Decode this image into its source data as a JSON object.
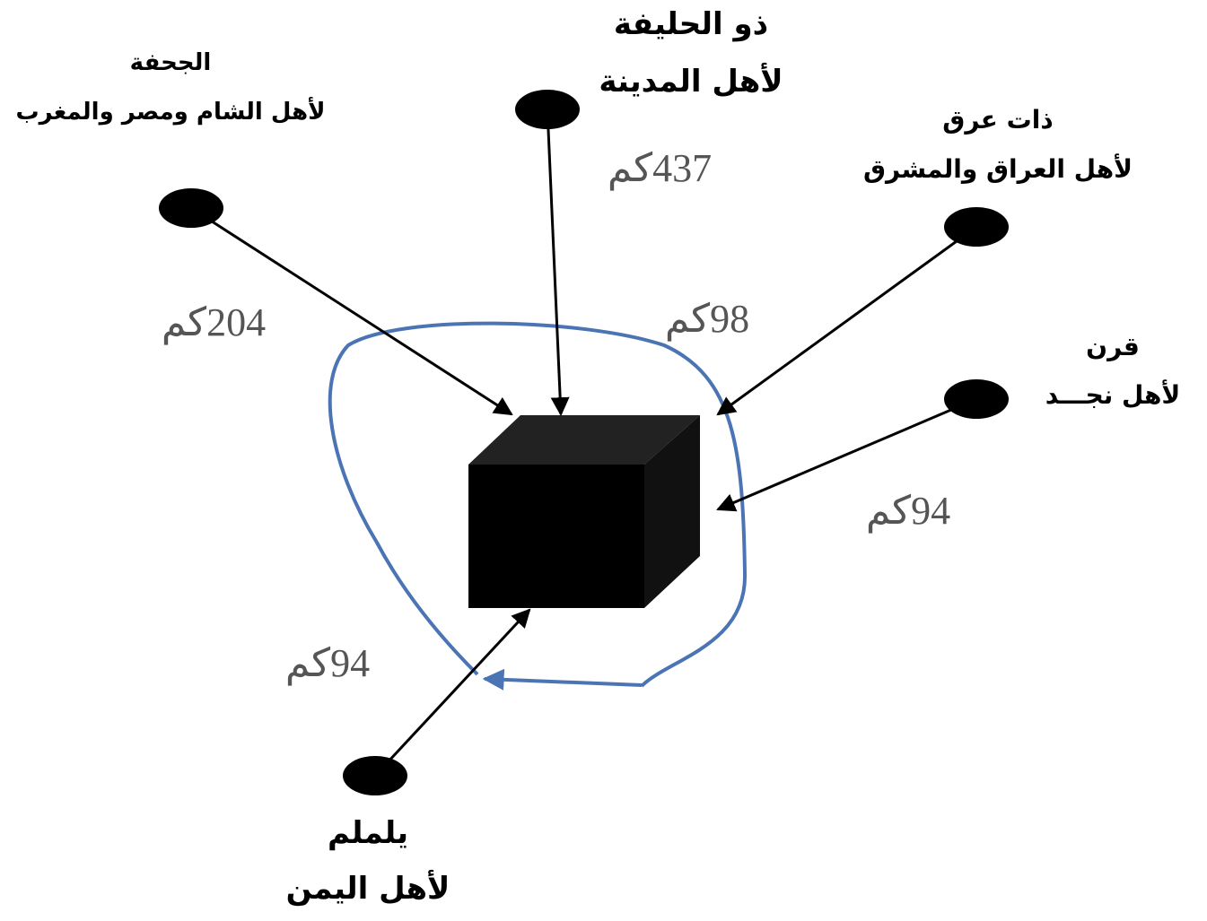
{
  "nodes": [
    {
      "name": "ذو الحليفة",
      "for_people": "لأهل المدينة",
      "distance": "437كم"
    },
    {
      "name": "الجحفة",
      "for_people": "لأهل الشام ومصر والمغرب",
      "distance": "204كم"
    },
    {
      "name": "ذات عرق",
      "for_people": "لأهل العراق والمشرق",
      "distance": "98كم"
    },
    {
      "name": "قرن",
      "for_people": "لأهل نجـــد",
      "distance": "94كم"
    },
    {
      "name": "يلملم",
      "for_people": "لأهل اليمن",
      "distance": "94كم"
    }
  ]
}
